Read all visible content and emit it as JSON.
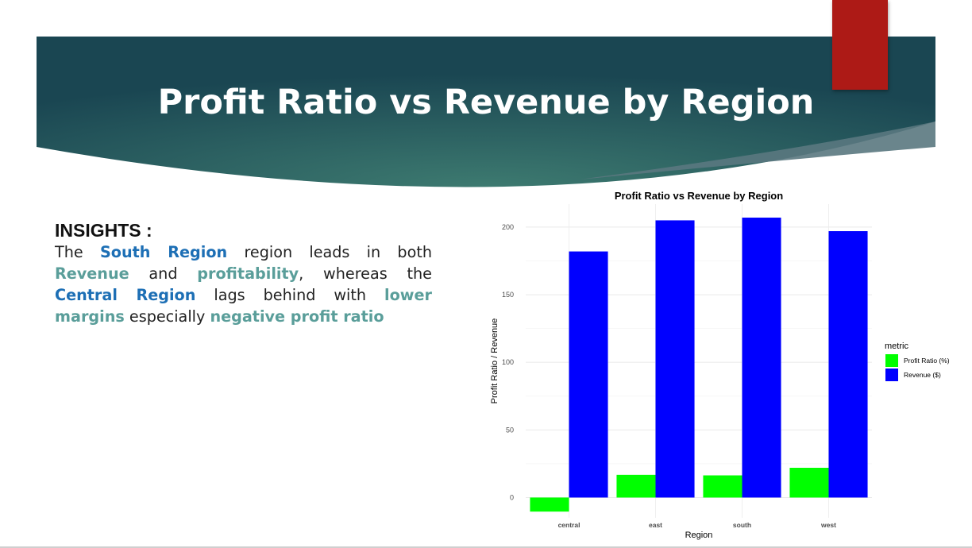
{
  "slide": {
    "title": "Profit Ratio vs Revenue by Region"
  },
  "insights": {
    "heading": "INSIGHTS :",
    "parts": [
      {
        "text": "The ",
        "style": "plain"
      },
      {
        "text": "South Region",
        "style": "blue"
      },
      {
        "text": " region leads in both ",
        "style": "plain"
      },
      {
        "text": "Revenue",
        "style": "teal"
      },
      {
        "text": " and ",
        "style": "plain"
      },
      {
        "text": "profitability",
        "style": "teal"
      },
      {
        "text": ", whereas the ",
        "style": "plain"
      },
      {
        "text": "Central Region",
        "style": "blue"
      },
      {
        "text": " lags behind with ",
        "style": "plain"
      },
      {
        "text": "lower margins",
        "style": "teal"
      },
      {
        "text": " especially ",
        "style": "plain"
      },
      {
        "text": "negative profit ratio",
        "style": "teal"
      }
    ]
  },
  "colors": {
    "banner_dark": "#1a4652",
    "banner_mid": "#3d7a70",
    "accent_red": "#ad1a16",
    "highlight_blue": "#1d6fb5",
    "highlight_teal": "#5a9e9a"
  },
  "chart_data": {
    "type": "bar",
    "title": "Profit Ratio vs Revenue by Region",
    "xlabel": "Region",
    "ylabel": "Profit Ratio / Revenue",
    "categories": [
      "central",
      "east",
      "south",
      "west"
    ],
    "series": [
      {
        "name": "Profit Ratio (%)",
        "color": "#00ff00",
        "values": [
          -10.4,
          16.8,
          16.4,
          22.0
        ]
      },
      {
        "name": "Revenue ($)",
        "color": "#0000ff",
        "values": [
          182,
          205,
          207,
          197
        ]
      }
    ],
    "ylim": [
      -15,
      217
    ],
    "yticks": [
      0,
      50,
      100,
      150,
      200
    ],
    "legend_title": "metric",
    "legend_position": "right",
    "grid": true
  }
}
